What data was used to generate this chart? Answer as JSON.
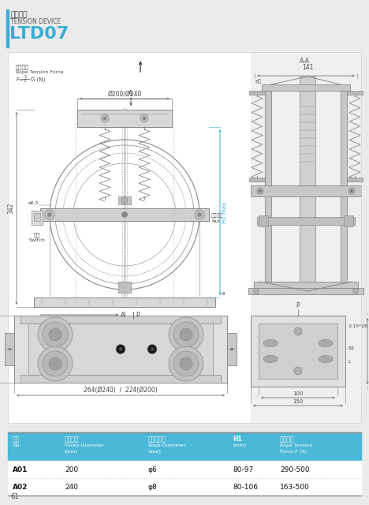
{
  "title_zh": "张紧装置",
  "title_en": "TENSION DEVICE",
  "model": "LTD07",
  "bg_color": "#ebebeb",
  "white_bg": "#ffffff",
  "blue_header": "#4bb8d8",
  "blue_accent": "#3aafd4",
  "rows": [
    [
      "A01",
      "200",
      "φ6",
      "80-97",
      "290-500"
    ],
    [
      "A02",
      "240",
      "φ8",
      "80-106",
      "163-500"
    ]
  ],
  "page_num": "61",
  "lc": "#888888",
  "dc": "#444444",
  "bc": "#3aafd4",
  "dim_lc": "#777777"
}
